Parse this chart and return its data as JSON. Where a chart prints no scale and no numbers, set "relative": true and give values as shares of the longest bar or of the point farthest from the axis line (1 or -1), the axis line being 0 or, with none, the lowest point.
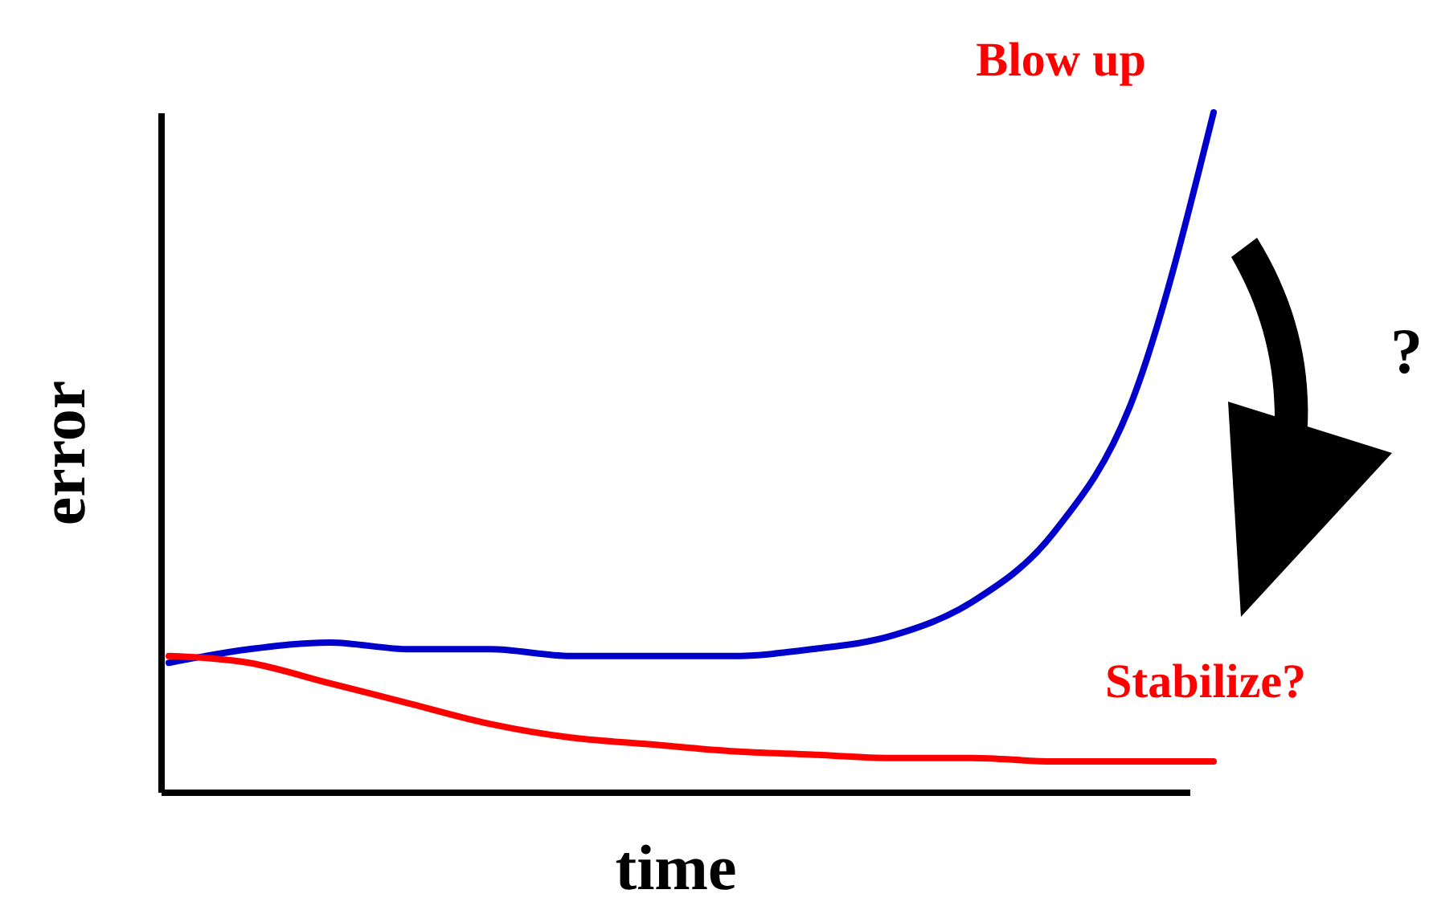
{
  "chart_data": {
    "type": "line",
    "relative": true,
    "xlabel": "time",
    "ylabel": "error",
    "categories": [
      null,
      null,
      null,
      null,
      null,
      null,
      null,
      null,
      null,
      null,
      null,
      null,
      null,
      null
    ],
    "series": [
      {
        "color": "#0000cc",
        "values": [
          0.19,
          0.21,
          0.22,
          0.21,
          0.21,
          0.2,
          0.2,
          0.2,
          0.21,
          0.23,
          0.28,
          0.38,
          0.58,
          1.0
        ]
      },
      {
        "color": "#ff0000",
        "values": [
          0.2,
          0.19,
          0.16,
          0.13,
          0.1,
          0.08,
          0.07,
          0.06,
          0.055,
          0.05,
          0.05,
          0.045,
          0.045,
          0.045
        ]
      }
    ],
    "annotations": [
      "Blow up",
      "Stabilize?",
      "?"
    ],
    "legend": false,
    "grid": false
  }
}
